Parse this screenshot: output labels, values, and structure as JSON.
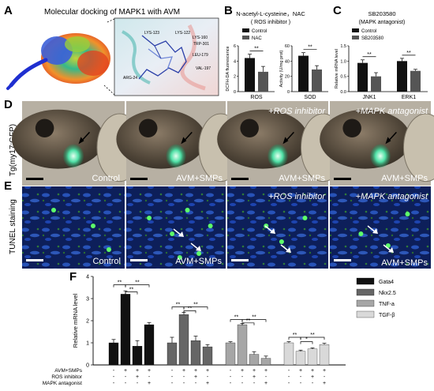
{
  "panel_letters": [
    "A",
    "B",
    "C",
    "D",
    "E",
    "F"
  ],
  "panelA": {
    "title": "Molecular docking of MAPK1 with AVM",
    "residues": [
      "LYS-123",
      "LYS-122",
      "LYS-160",
      "TRP-301",
      "LEU-179",
      "VAL-197",
      "ARG-24"
    ]
  },
  "panelD": {
    "row_label": "Tg(my17:GFP)",
    "captions": [
      "Control",
      "AVM+SMPs",
      "AVM+SMPs",
      "AVM+SMPs"
    ],
    "overlays": [
      "",
      "",
      "+ROS inhibitor",
      "+MAPK antagonist"
    ]
  },
  "panelE": {
    "row_label": "TUNEL staining",
    "captions": [
      "Control",
      "AVM+SMPs",
      "",
      ""
    ],
    "overlays": [
      "",
      "",
      "+ROS inhibitor",
      "+MAPK antagonist"
    ],
    "extra_caption": "AVM+SMPs"
  },
  "panelF_treatments": {
    "rows": [
      "AVM+SMPs",
      "ROS inhibitor",
      "MAPK antagonist"
    ],
    "signs": [
      [
        "-",
        "+",
        "+",
        "+"
      ],
      [
        "-",
        "-",
        "+",
        "-"
      ],
      [
        "-",
        "-",
        "-",
        "+"
      ]
    ]
  },
  "chart_data": [
    {
      "type": "bar",
      "panel": "B",
      "title": "N-acetyl-L-cysteine，NAC",
      "subtitle": "( ROS inhibitor )",
      "legend": [
        "Control",
        "NAC"
      ],
      "legend_placement": "top",
      "subplots": [
        {
          "categories": [
            "Control",
            "NAC"
          ],
          "values": [
            4.4,
            2.6
          ],
          "errors": [
            0.5,
            0.7
          ],
          "xlabel": "ROS",
          "ylabel": "DCFH-DA fluorescence",
          "ylim": [
            0,
            6
          ],
          "ticks": [
            0,
            2,
            4,
            6
          ],
          "significance": "**"
        },
        {
          "categories": [
            "Control",
            "NAC"
          ],
          "values": [
            47,
            29
          ],
          "errors": [
            4,
            5
          ],
          "xlabel": "SOD",
          "ylabel": "Activity (U/mg prot)",
          "ylim": [
            0,
            60
          ],
          "ticks": [
            0,
            20,
            40,
            60
          ],
          "significance": "**"
        }
      ],
      "colors": [
        "#111111",
        "#555555"
      ]
    },
    {
      "type": "bar",
      "panel": "C",
      "title": "SB203580",
      "subtitle": "(MAPK antagonist)",
      "legend": [
        "Control",
        "SB203580"
      ],
      "categories": [
        "JNK1",
        "ERK1"
      ],
      "ylabel": "Relative mRNA level",
      "ylim": [
        0,
        1.5
      ],
      "ticks": [
        "0.0",
        "0.5",
        "1.0",
        "1.5"
      ],
      "series": [
        {
          "name": "Control",
          "values": [
            0.94,
            1.0
          ],
          "errors": [
            0.1,
            0.09
          ]
        },
        {
          "name": "SB203580",
          "values": [
            0.5,
            0.68
          ],
          "errors": [
            0.12,
            0.05
          ]
        }
      ],
      "significance": [
        "**",
        "**"
      ],
      "colors": [
        "#111111",
        "#555555"
      ]
    },
    {
      "type": "bar",
      "panel": "F",
      "ylabel": "Relative mRNA level",
      "ylim": [
        0,
        4
      ],
      "ticks": [
        0,
        1,
        2,
        3,
        4
      ],
      "legend": [
        "Gata4",
        "Nkx2.5",
        "TNF-a",
        "TGF-β"
      ],
      "legend_placement": "top-right",
      "groups": [
        {
          "name": "Gata4",
          "color": "#111111",
          "values": [
            1.0,
            3.2,
            0.85,
            1.82
          ],
          "errors": [
            0.15,
            0.15,
            0.25,
            0.1
          ]
        },
        {
          "name": "Nkx2.5",
          "color": "#666666",
          "values": [
            1.0,
            2.28,
            1.1,
            0.82
          ],
          "errors": [
            0.25,
            0.1,
            0.2,
            0.1
          ]
        },
        {
          "name": "TNF-a",
          "color": "#a6a6a6",
          "values": [
            1.0,
            1.82,
            0.48,
            0.3
          ],
          "errors": [
            0.05,
            0.05,
            0.12,
            0.1
          ]
        },
        {
          "name": "TGF-β",
          "color": "#d9d9d9",
          "values": [
            1.0,
            0.62,
            0.72,
            0.92
          ],
          "errors": [
            0.05,
            0.05,
            0.05,
            0.06
          ]
        }
      ],
      "significance_label": "**",
      "significance_label_minor": "*"
    }
  ]
}
